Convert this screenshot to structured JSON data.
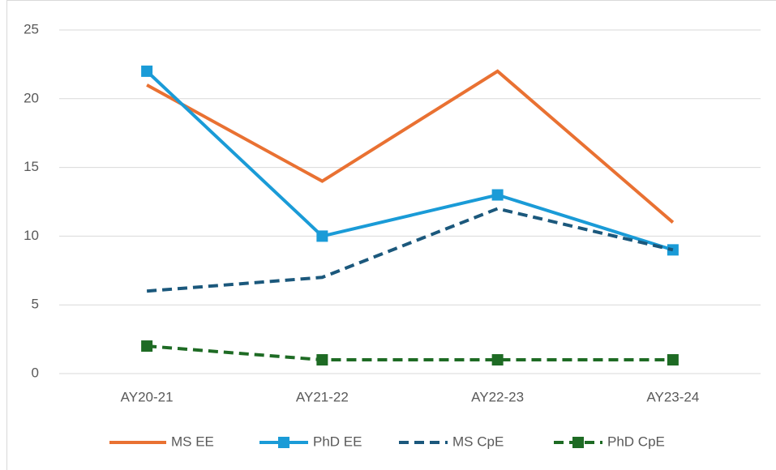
{
  "chart_data": {
    "type": "line",
    "categories": [
      "AY20-21",
      "AY21-22",
      "AY22-23",
      "AY23-24"
    ],
    "series": [
      {
        "name": "MS EE",
        "color": "#e97132",
        "values": [
          21,
          14,
          22,
          11
        ],
        "dashed": false,
        "markers": false
      },
      {
        "name": "PhD EE",
        "color": "#1a9bd7",
        "values": [
          22,
          10,
          13,
          9
        ],
        "dashed": false,
        "markers": true
      },
      {
        "name": "MS CpE",
        "color": "#1b587c",
        "values": [
          6,
          7,
          12,
          9
        ],
        "dashed": true,
        "markers": false
      },
      {
        "name": "PhD CpE",
        "color": "#1e6b24",
        "values": [
          2,
          1,
          1,
          1
        ],
        "dashed": true,
        "markers": true
      }
    ],
    "ylim": [
      0,
      25
    ],
    "yticks": [
      0,
      5,
      10,
      15,
      20,
      25
    ],
    "grid": true,
    "legend": "bottom"
  }
}
